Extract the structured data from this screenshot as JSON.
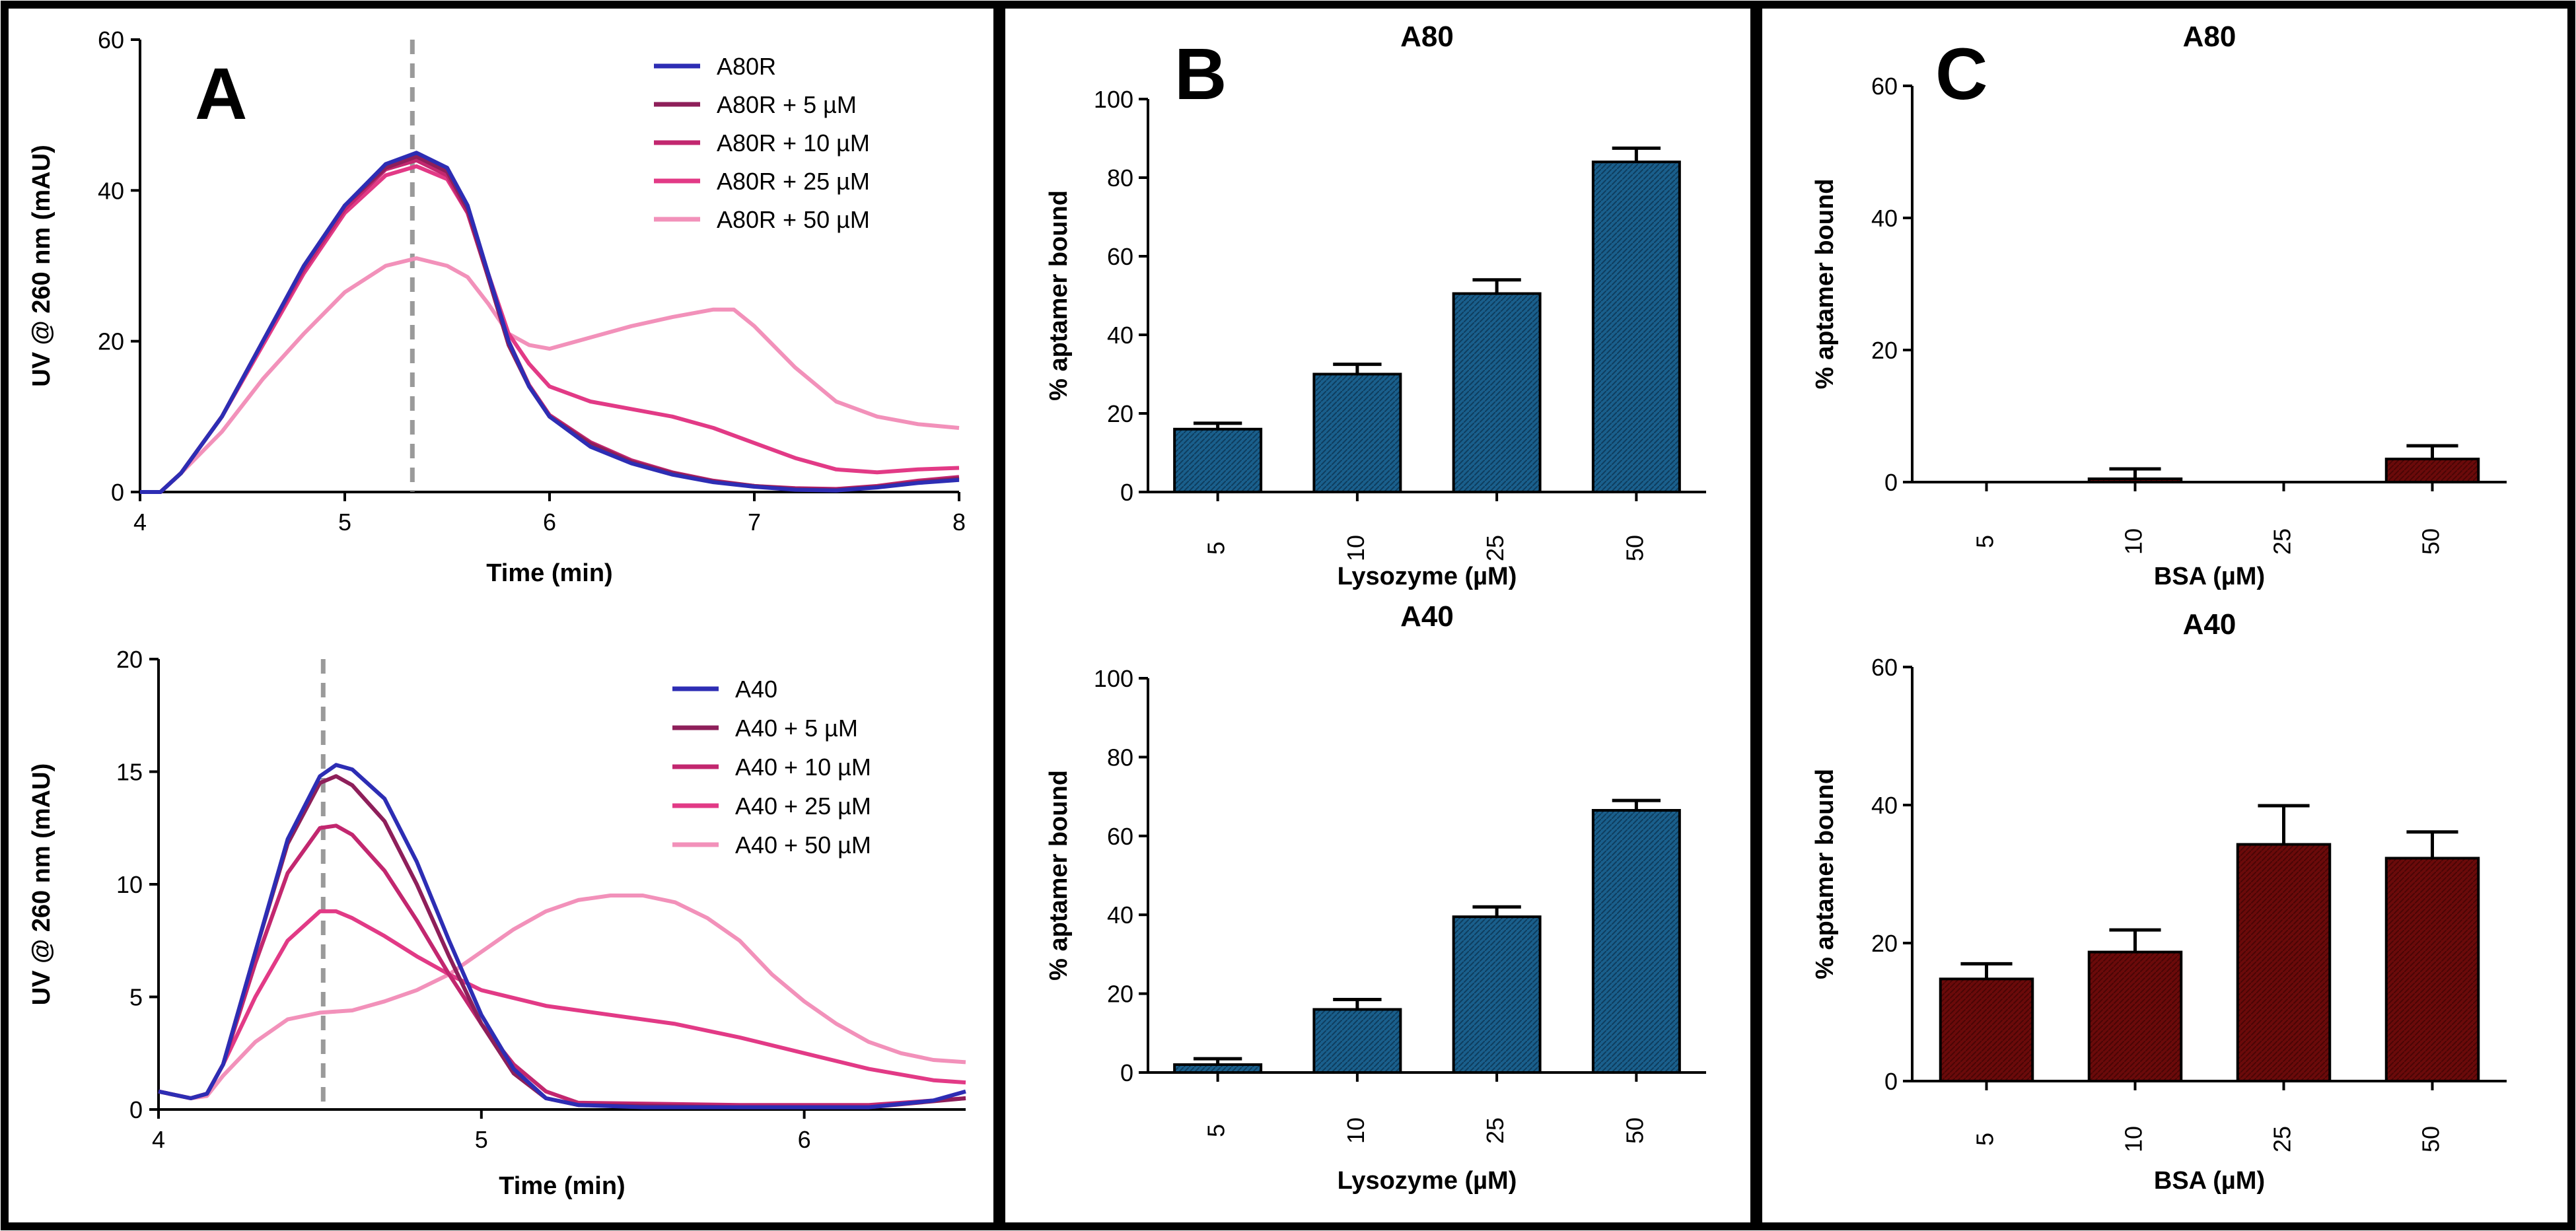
{
  "colors": {
    "series": [
      "#2d2db4",
      "#8e1f5a",
      "#c2276f",
      "#e23a86",
      "#f291ba"
    ],
    "blue_bar": "#1a5f8c",
    "red_bar": "#6b0a0a",
    "dashed": "#9a9a9a"
  },
  "panel_letters": {
    "a": "A",
    "b": "B",
    "c": "C"
  },
  "chart_data": [
    {
      "id": "A_top",
      "type": "line",
      "xlabel": "Time (min)",
      "ylabel": "UV @ 260 nm (mAU)",
      "xlim": [
        4,
        8
      ],
      "ylim": [
        0,
        60
      ],
      "xticks": [
        4,
        5,
        6,
        7,
        8
      ],
      "yticks": [
        0,
        20,
        40,
        60
      ],
      "vline_x": 5.33,
      "series": [
        {
          "name": "A80R",
          "points": [
            [
              4.0,
              0
            ],
            [
              4.1,
              0
            ],
            [
              4.2,
              2.5
            ],
            [
              4.4,
              10
            ],
            [
              4.6,
              20
            ],
            [
              4.8,
              30
            ],
            [
              5.0,
              38
            ],
            [
              5.2,
              43.5
            ],
            [
              5.35,
              45
            ],
            [
              5.5,
              43
            ],
            [
              5.6,
              38
            ],
            [
              5.7,
              29
            ],
            [
              5.8,
              20
            ],
            [
              5.9,
              14
            ],
            [
              6.0,
              10
            ],
            [
              6.2,
              6
            ],
            [
              6.4,
              3.8
            ],
            [
              6.6,
              2.3
            ],
            [
              6.8,
              1.3
            ],
            [
              7.0,
              0.7
            ],
            [
              7.2,
              0.3
            ],
            [
              7.4,
              0.2
            ],
            [
              7.6,
              0.6
            ],
            [
              7.8,
              1.2
            ],
            [
              8.0,
              1.6
            ]
          ]
        },
        {
          "name": "A80R + 5 µM",
          "points": [
            [
              4.0,
              0
            ],
            [
              4.1,
              0
            ],
            [
              4.2,
              2.5
            ],
            [
              4.4,
              10
            ],
            [
              4.6,
              20
            ],
            [
              4.8,
              30
            ],
            [
              5.0,
              38
            ],
            [
              5.2,
              43
            ],
            [
              5.35,
              44.5
            ],
            [
              5.5,
              42.5
            ],
            [
              5.6,
              37.5
            ],
            [
              5.7,
              28.5
            ],
            [
              5.8,
              19.5
            ],
            [
              5.9,
              14
            ],
            [
              6.0,
              10
            ],
            [
              6.2,
              6.4
            ],
            [
              6.4,
              4
            ],
            [
              6.6,
              2.5
            ],
            [
              6.8,
              1.4
            ],
            [
              7.0,
              0.8
            ],
            [
              7.2,
              0.4
            ],
            [
              7.4,
              0.3
            ],
            [
              7.6,
              0.7
            ],
            [
              7.8,
              1.3
            ],
            [
              8.0,
              1.8
            ]
          ]
        },
        {
          "name": "A80R + 10 µM",
          "points": [
            [
              4.0,
              0
            ],
            [
              4.1,
              0
            ],
            [
              4.2,
              2.5
            ],
            [
              4.4,
              10
            ],
            [
              4.6,
              20
            ],
            [
              4.8,
              29.5
            ],
            [
              5.0,
              37.5
            ],
            [
              5.2,
              42.8
            ],
            [
              5.35,
              44
            ],
            [
              5.5,
              42
            ],
            [
              5.6,
              37
            ],
            [
              5.7,
              28.5
            ],
            [
              5.8,
              20
            ],
            [
              5.9,
              14.2
            ],
            [
              6.0,
              10.2
            ],
            [
              6.2,
              6.6
            ],
            [
              6.4,
              4.2
            ],
            [
              6.6,
              2.6
            ],
            [
              6.8,
              1.5
            ],
            [
              7.0,
              0.8
            ],
            [
              7.2,
              0.5
            ],
            [
              7.4,
              0.4
            ],
            [
              7.6,
              0.8
            ],
            [
              7.8,
              1.5
            ],
            [
              8.0,
              2
            ]
          ]
        },
        {
          "name": "A80R + 25 µM",
          "points": [
            [
              4.0,
              0
            ],
            [
              4.1,
              0
            ],
            [
              4.2,
              2.5
            ],
            [
              4.4,
              10
            ],
            [
              4.6,
              19.5
            ],
            [
              4.8,
              29
            ],
            [
              5.0,
              37
            ],
            [
              5.2,
              42
            ],
            [
              5.35,
              43.2
            ],
            [
              5.5,
              41.5
            ],
            [
              5.6,
              37
            ],
            [
              5.7,
              29
            ],
            [
              5.8,
              21
            ],
            [
              5.9,
              17
            ],
            [
              6.0,
              14
            ],
            [
              6.2,
              12
            ],
            [
              6.4,
              11
            ],
            [
              6.6,
              10
            ],
            [
              6.8,
              8.5
            ],
            [
              7.0,
              6.5
            ],
            [
              7.2,
              4.5
            ],
            [
              7.4,
              3
            ],
            [
              7.6,
              2.6
            ],
            [
              7.8,
              3
            ],
            [
              8.0,
              3.2
            ]
          ]
        },
        {
          "name": "A80R + 50 µM",
          "points": [
            [
              4.0,
              0
            ],
            [
              4.1,
              0
            ],
            [
              4.2,
              2.5
            ],
            [
              4.4,
              8
            ],
            [
              4.6,
              15
            ],
            [
              4.8,
              21
            ],
            [
              5.0,
              26.5
            ],
            [
              5.2,
              30
            ],
            [
              5.35,
              31
            ],
            [
              5.5,
              30
            ],
            [
              5.6,
              28.5
            ],
            [
              5.7,
              25
            ],
            [
              5.8,
              21
            ],
            [
              5.9,
              19.5
            ],
            [
              6.0,
              19
            ],
            [
              6.2,
              20.5
            ],
            [
              6.4,
              22
            ],
            [
              6.6,
              23.2
            ],
            [
              6.8,
              24.2
            ],
            [
              6.9,
              24.2
            ],
            [
              7.0,
              22
            ],
            [
              7.2,
              16.5
            ],
            [
              7.4,
              12
            ],
            [
              7.6,
              10
            ],
            [
              7.8,
              9
            ],
            [
              8.0,
              8.5
            ]
          ]
        }
      ]
    },
    {
      "id": "A_bottom",
      "type": "line",
      "xlabel": "Time (min)",
      "ylabel": "UV @ 260 nm (mAU)",
      "xlim": [
        4,
        6.5
      ],
      "ylim": [
        0,
        20
      ],
      "xticks": [
        4,
        5,
        6
      ],
      "yticks": [
        0,
        5,
        10,
        15,
        20
      ],
      "vline_x": 4.51,
      "series": [
        {
          "name": "A40",
          "points": [
            [
              4.0,
              0.8
            ],
            [
              4.1,
              0.5
            ],
            [
              4.15,
              0.7
            ],
            [
              4.2,
              2
            ],
            [
              4.3,
              7
            ],
            [
              4.4,
              12
            ],
            [
              4.5,
              14.8
            ],
            [
              4.55,
              15.3
            ],
            [
              4.6,
              15.1
            ],
            [
              4.7,
              13.8
            ],
            [
              4.8,
              11
            ],
            [
              4.9,
              7.5
            ],
            [
              5.0,
              4.2
            ],
            [
              5.1,
              1.8
            ],
            [
              5.2,
              0.5
            ],
            [
              5.3,
              0.2
            ],
            [
              5.5,
              0.1
            ],
            [
              5.8,
              0.1
            ],
            [
              6.2,
              0.1
            ],
            [
              6.4,
              0.4
            ],
            [
              6.5,
              0.8
            ]
          ]
        },
        {
          "name": "A40 + 5 µM",
          "points": [
            [
              4.0,
              0.8
            ],
            [
              4.1,
              0.5
            ],
            [
              4.15,
              0.7
            ],
            [
              4.2,
              2
            ],
            [
              4.3,
              7
            ],
            [
              4.4,
              11.8
            ],
            [
              4.5,
              14.5
            ],
            [
              4.55,
              14.8
            ],
            [
              4.6,
              14.4
            ],
            [
              4.7,
              12.8
            ],
            [
              4.8,
              10
            ],
            [
              4.9,
              6.8
            ],
            [
              5.0,
              3.8
            ],
            [
              5.1,
              1.6
            ],
            [
              5.2,
              0.5
            ],
            [
              5.3,
              0.2
            ],
            [
              5.8,
              0.1
            ],
            [
              6.2,
              0.1
            ],
            [
              6.5,
              0.5
            ]
          ]
        },
        {
          "name": "A40 + 10 µM",
          "points": [
            [
              4.0,
              0.8
            ],
            [
              4.1,
              0.5
            ],
            [
              4.15,
              0.7
            ],
            [
              4.2,
              2
            ],
            [
              4.3,
              6.5
            ],
            [
              4.4,
              10.5
            ],
            [
              4.5,
              12.5
            ],
            [
              4.55,
              12.6
            ],
            [
              4.6,
              12.2
            ],
            [
              4.7,
              10.6
            ],
            [
              4.8,
              8.4
            ],
            [
              4.9,
              6
            ],
            [
              5.0,
              3.8
            ],
            [
              5.1,
              2
            ],
            [
              5.2,
              0.8
            ],
            [
              5.3,
              0.3
            ],
            [
              5.8,
              0.2
            ],
            [
              6.2,
              0.2
            ],
            [
              6.5,
              0.5
            ]
          ]
        },
        {
          "name": "A40 + 25 µM",
          "points": [
            [
              4.0,
              0.8
            ],
            [
              4.1,
              0.5
            ],
            [
              4.15,
              0.7
            ],
            [
              4.2,
              2
            ],
            [
              4.3,
              5
            ],
            [
              4.4,
              7.5
            ],
            [
              4.5,
              8.8
            ],
            [
              4.55,
              8.8
            ],
            [
              4.6,
              8.5
            ],
            [
              4.7,
              7.7
            ],
            [
              4.8,
              6.8
            ],
            [
              4.9,
              6
            ],
            [
              5.0,
              5.3
            ],
            [
              5.2,
              4.6
            ],
            [
              5.4,
              4.2
            ],
            [
              5.6,
              3.8
            ],
            [
              5.8,
              3.2
            ],
            [
              6.0,
              2.5
            ],
            [
              6.2,
              1.8
            ],
            [
              6.4,
              1.3
            ],
            [
              6.5,
              1.2
            ]
          ]
        },
        {
          "name": "A40 + 50 µM",
          "points": [
            [
              4.0,
              0.8
            ],
            [
              4.1,
              0.5
            ],
            [
              4.15,
              0.6
            ],
            [
              4.2,
              1.5
            ],
            [
              4.3,
              3
            ],
            [
              4.4,
              4
            ],
            [
              4.5,
              4.3
            ],
            [
              4.6,
              4.4
            ],
            [
              4.7,
              4.8
            ],
            [
              4.8,
              5.3
            ],
            [
              4.9,
              6
            ],
            [
              5.0,
              7
            ],
            [
              5.1,
              8
            ],
            [
              5.2,
              8.8
            ],
            [
              5.3,
              9.3
            ],
            [
              5.4,
              9.5
            ],
            [
              5.5,
              9.5
            ],
            [
              5.6,
              9.2
            ],
            [
              5.7,
              8.5
            ],
            [
              5.8,
              7.5
            ],
            [
              5.9,
              6
            ],
            [
              6.0,
              4.8
            ],
            [
              6.1,
              3.8
            ],
            [
              6.2,
              3
            ],
            [
              6.3,
              2.5
            ],
            [
              6.4,
              2.2
            ],
            [
              6.5,
              2.1
            ]
          ]
        }
      ]
    },
    {
      "id": "B_top",
      "type": "bar",
      "title": "A80",
      "categories": [
        "5",
        "10",
        "25",
        "50"
      ],
      "values": [
        16,
        30,
        50.5,
        84
      ],
      "errors": [
        1.5,
        2.5,
        3.5,
        3.5
      ],
      "xlabel": "Lysozyme (µM)",
      "ylabel": "% aptamer bound",
      "ylim": [
        0,
        100
      ],
      "yticks": [
        0,
        20,
        40,
        60,
        80,
        100
      ]
    },
    {
      "id": "B_bottom",
      "type": "bar",
      "title": "A40",
      "categories": [
        "5",
        "10",
        "25",
        "50"
      ],
      "values": [
        2,
        16,
        39.5,
        66.5
      ],
      "errors": [
        1.5,
        2.5,
        2.5,
        2.5
      ],
      "xlabel": "Lysozyme (µM)",
      "ylabel": "% aptamer bound",
      "ylim": [
        0,
        100
      ],
      "yticks": [
        0,
        20,
        40,
        60,
        80,
        100
      ]
    },
    {
      "id": "C_top",
      "type": "bar",
      "title": "A80",
      "categories": [
        "5",
        "10",
        "25",
        "50"
      ],
      "values": [
        0,
        0.5,
        0,
        3.5
      ],
      "errors": [
        0,
        1.5,
        0,
        2
      ],
      "xlabel": "BSA (µM)",
      "ylabel": "% aptamer bound",
      "ylim": [
        0,
        60
      ],
      "yticks": [
        0,
        20,
        40,
        60
      ]
    },
    {
      "id": "C_bottom",
      "type": "bar",
      "title": "A40",
      "categories": [
        "5",
        "10",
        "25",
        "50"
      ],
      "values": [
        14.8,
        18.7,
        34.3,
        32.3
      ],
      "errors": [
        2.2,
        3.2,
        5.6,
        3.8
      ],
      "xlabel": "BSA (µM)",
      "ylabel": "% aptamer bound",
      "ylim": [
        0,
        60
      ],
      "yticks": [
        0,
        20,
        40,
        60
      ]
    }
  ]
}
